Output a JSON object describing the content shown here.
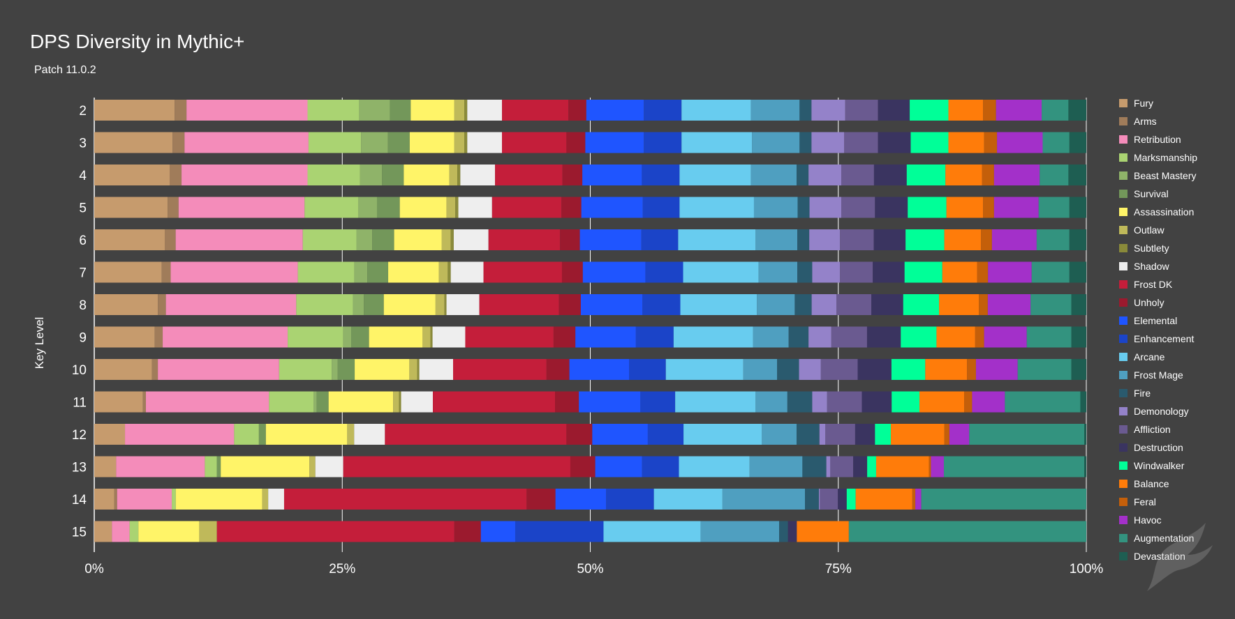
{
  "chart_data": {
    "type": "bar",
    "orientation": "horizontal",
    "stacked": "percent",
    "title": "DPS Diversity in Mythic+",
    "subtitle": "Patch 11.0.2",
    "ylabel": "Key Level",
    "xlabel": "",
    "xlim": [
      0,
      100
    ],
    "xticks": [
      {
        "value": 0,
        "label": "0%"
      },
      {
        "value": 25,
        "label": "25%"
      },
      {
        "value": 50,
        "label": "50%"
      },
      {
        "value": 75,
        "label": "75%"
      },
      {
        "value": 100,
        "label": "100%"
      }
    ],
    "legend_position": "right",
    "categories": [
      "2",
      "3",
      "4",
      "5",
      "6",
      "7",
      "8",
      "9",
      "10",
      "11",
      "12",
      "13",
      "14",
      "15"
    ],
    "series": [
      {
        "name": "Fury",
        "color": "#c69b6d",
        "values": [
          8.1,
          7.9,
          7.6,
          7.4,
          7.1,
          6.8,
          6.4,
          6.1,
          5.8,
          4.9,
          3.1,
          2.2,
          2.0,
          1.8
        ]
      },
      {
        "name": "Arms",
        "color": "#a07c5a",
        "values": [
          1.2,
          1.2,
          1.2,
          1.1,
          1.1,
          0.9,
          0.8,
          0.8,
          0.6,
          0.3,
          0.0,
          0.0,
          0.3,
          0.0
        ]
      },
      {
        "name": "Retribution",
        "color": "#f48cba",
        "values": [
          12.2,
          12.5,
          12.7,
          12.7,
          12.8,
          12.8,
          13.1,
          12.6,
          12.2,
          12.4,
          11.0,
          8.9,
          5.5,
          1.8
        ]
      },
      {
        "name": "Marksmanship",
        "color": "#aad372",
        "values": [
          5.2,
          5.3,
          5.3,
          5.4,
          5.4,
          5.7,
          5.7,
          5.6,
          5.3,
          4.5,
          2.5,
          1.2,
          0.4,
          0.9
        ]
      },
      {
        "name": "Beast Mastery",
        "color": "#8fb369",
        "values": [
          3.1,
          2.7,
          2.2,
          1.9,
          1.6,
          1.3,
          1.1,
          0.8,
          0.6,
          0.3,
          0.0,
          0.0,
          0.0,
          0.0
        ]
      },
      {
        "name": "Survival",
        "color": "#73975a",
        "values": [
          2.1,
          2.2,
          2.2,
          2.3,
          2.2,
          2.1,
          2.0,
          1.8,
          1.7,
          1.2,
          0.7,
          0.4,
          0.0,
          0.0
        ]
      },
      {
        "name": "Assassination",
        "color": "#fff468",
        "values": [
          4.4,
          4.5,
          4.6,
          4.7,
          4.8,
          5.1,
          5.2,
          5.4,
          5.5,
          6.5,
          8.2,
          8.9,
          8.7,
          6.2
        ]
      },
      {
        "name": "Outlaw",
        "color": "#bfb95a",
        "values": [
          1.0,
          1.0,
          0.8,
          0.9,
          0.9,
          0.9,
          0.9,
          0.8,
          0.8,
          0.6,
          0.7,
          0.6,
          0.6,
          1.8
        ]
      },
      {
        "name": "Subtlety",
        "color": "#8a8a3a",
        "values": [
          0.3,
          0.3,
          0.3,
          0.3,
          0.3,
          0.3,
          0.2,
          0.2,
          0.2,
          0.2,
          0.0,
          0.0,
          0.0,
          0.0
        ]
      },
      {
        "name": "Shadow",
        "color": "#eeeeee",
        "values": [
          3.5,
          3.5,
          3.5,
          3.4,
          3.5,
          3.3,
          3.3,
          3.3,
          3.4,
          3.2,
          3.1,
          2.8,
          1.6,
          0.0
        ]
      },
      {
        "name": "Frost DK",
        "color": "#c41e3a",
        "values": [
          6.7,
          6.5,
          6.8,
          7.0,
          7.2,
          7.9,
          8.0,
          8.9,
          9.4,
          12.3,
          18.3,
          22.8,
          24.4,
          24.2
        ]
      },
      {
        "name": "Unholy",
        "color": "#9b1a2e",
        "values": [
          1.8,
          1.9,
          2.0,
          2.0,
          2.0,
          2.1,
          2.2,
          2.2,
          2.3,
          2.4,
          2.6,
          2.5,
          2.9,
          2.7
        ]
      },
      {
        "name": "Elemental",
        "color": "#1f55ff",
        "values": [
          5.8,
          5.9,
          6.0,
          6.2,
          6.2,
          6.3,
          6.2,
          6.1,
          6.0,
          6.2,
          5.6,
          4.7,
          5.1,
          3.5
        ]
      },
      {
        "name": "Enhancement",
        "color": "#1b44c8",
        "values": [
          3.8,
          3.8,
          3.8,
          3.7,
          3.7,
          3.8,
          3.8,
          3.8,
          3.7,
          3.5,
          3.6,
          3.7,
          4.8,
          9.0
        ]
      },
      {
        "name": "Arcane",
        "color": "#68ccef",
        "values": [
          7.0,
          7.1,
          7.2,
          7.5,
          7.8,
          7.6,
          7.7,
          8.0,
          7.8,
          8.1,
          7.9,
          7.1,
          6.9,
          9.9
        ]
      },
      {
        "name": "Frost Mage",
        "color": "#4f9fc0",
        "values": [
          4.9,
          4.8,
          4.6,
          4.4,
          4.2,
          3.9,
          3.8,
          3.6,
          3.4,
          3.2,
          3.5,
          5.3,
          8.3,
          8.0
        ]
      },
      {
        "name": "Fire",
        "color": "#2a5a6e",
        "values": [
          1.2,
          1.2,
          1.2,
          1.2,
          1.2,
          1.5,
          1.7,
          2.0,
          2.2,
          2.5,
          2.3,
          2.4,
          1.4,
          0.9
        ]
      },
      {
        "name": "Demonology",
        "color": "#9482c9",
        "values": [
          3.4,
          3.3,
          3.3,
          3.2,
          3.1,
          2.8,
          2.5,
          2.3,
          2.2,
          1.5,
          0.6,
          0.4,
          0.1,
          0.0
        ]
      },
      {
        "name": "Affliction",
        "color": "#6a5a90",
        "values": [
          3.3,
          3.4,
          3.3,
          3.4,
          3.4,
          3.3,
          3.5,
          3.6,
          3.7,
          3.5,
          3.0,
          2.3,
          1.8,
          0.0
        ]
      },
      {
        "name": "Destruction",
        "color": "#3a3460",
        "values": [
          3.2,
          3.3,
          3.3,
          3.3,
          3.2,
          3.2,
          3.2,
          3.4,
          3.4,
          3.0,
          2.0,
          1.4,
          0.9,
          0.9
        ]
      },
      {
        "name": "Windwalker",
        "color": "#00ff98",
        "values": [
          3.9,
          3.8,
          3.9,
          3.9,
          3.9,
          3.8,
          3.6,
          3.6,
          3.4,
          2.8,
          1.6,
          0.9,
          0.9,
          0.0
        ]
      },
      {
        "name": "Balance",
        "color": "#ff7c0a",
        "values": [
          3.5,
          3.6,
          3.7,
          3.7,
          3.7,
          3.5,
          4.0,
          3.9,
          4.2,
          4.5,
          5.4,
          5.3,
          5.7,
          5.3
        ]
      },
      {
        "name": "Feral",
        "color": "#c45f0a",
        "values": [
          1.3,
          1.3,
          1.2,
          1.1,
          1.1,
          1.1,
          0.9,
          0.9,
          0.9,
          0.8,
          0.5,
          0.2,
          0.3,
          0.0
        ]
      },
      {
        "name": "Havoc",
        "color": "#a330c9",
        "values": [
          4.6,
          4.6,
          4.6,
          4.5,
          4.5,
          4.4,
          4.3,
          4.3,
          4.2,
          3.3,
          2.0,
          1.3,
          0.6,
          0.0
        ]
      },
      {
        "name": "Augmentation",
        "color": "#33937f",
        "values": [
          2.7,
          2.7,
          2.9,
          3.1,
          3.3,
          3.8,
          4.1,
          4.5,
          5.4,
          7.6,
          11.6,
          14.1,
          16.6,
          24.2
        ]
      },
      {
        "name": "Devastation",
        "color": "#1e5e52",
        "values": [
          1.8,
          1.7,
          1.8,
          1.7,
          1.7,
          1.7,
          1.5,
          1.5,
          1.5,
          0.6,
          0.2,
          0.2,
          0.0,
          0.0
        ]
      }
    ]
  }
}
